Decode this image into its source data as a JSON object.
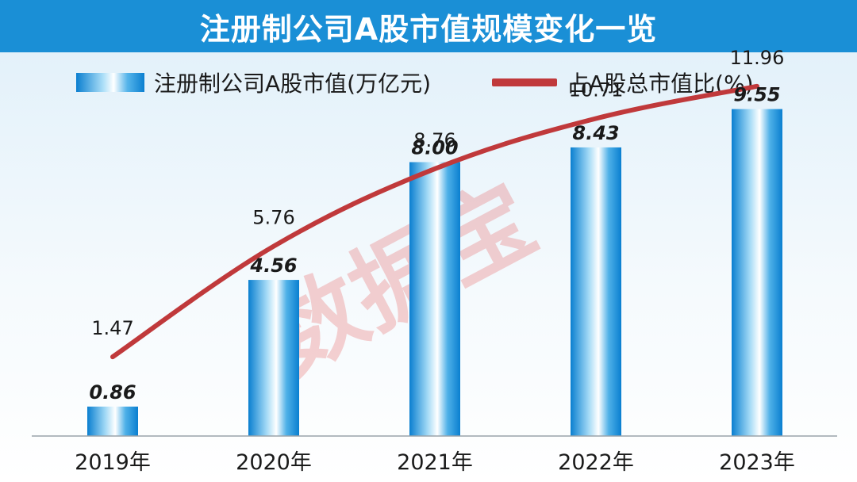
{
  "title": "注册制公司A股市值规模变化一览",
  "watermark": "数据宝",
  "colors": {
    "title_band": "#1a8fd6",
    "bar_dark": "#0a7fd0",
    "bar_light": "#aee0f8",
    "line": "#c0393b",
    "background_top": "#eaf4fb"
  },
  "chart_data": {
    "type": "bar",
    "categories": [
      "2019年",
      "2020年",
      "2021年",
      "2022年",
      "2023年"
    ],
    "series": [
      {
        "name": "注册制公司A股市值(万亿元)",
        "type": "bar",
        "values": [
          0.86,
          4.56,
          8.0,
          8.43,
          9.55
        ],
        "labels": [
          "0.86",
          "4.56",
          "8.00",
          "8.43",
          "9.55"
        ]
      },
      {
        "name": "占A股总市值比(%)",
        "type": "line",
        "values": [
          1.47,
          5.76,
          8.76,
          10.71,
          11.96
        ],
        "labels": [
          "1.47",
          "5.76",
          "8.76",
          "10.71",
          "11.96"
        ]
      }
    ],
    "legend_position": "top",
    "grid": false,
    "bar_ylim": [
      0,
      11.3
    ],
    "line_ylim": [
      -1.6,
      13.4
    ]
  }
}
